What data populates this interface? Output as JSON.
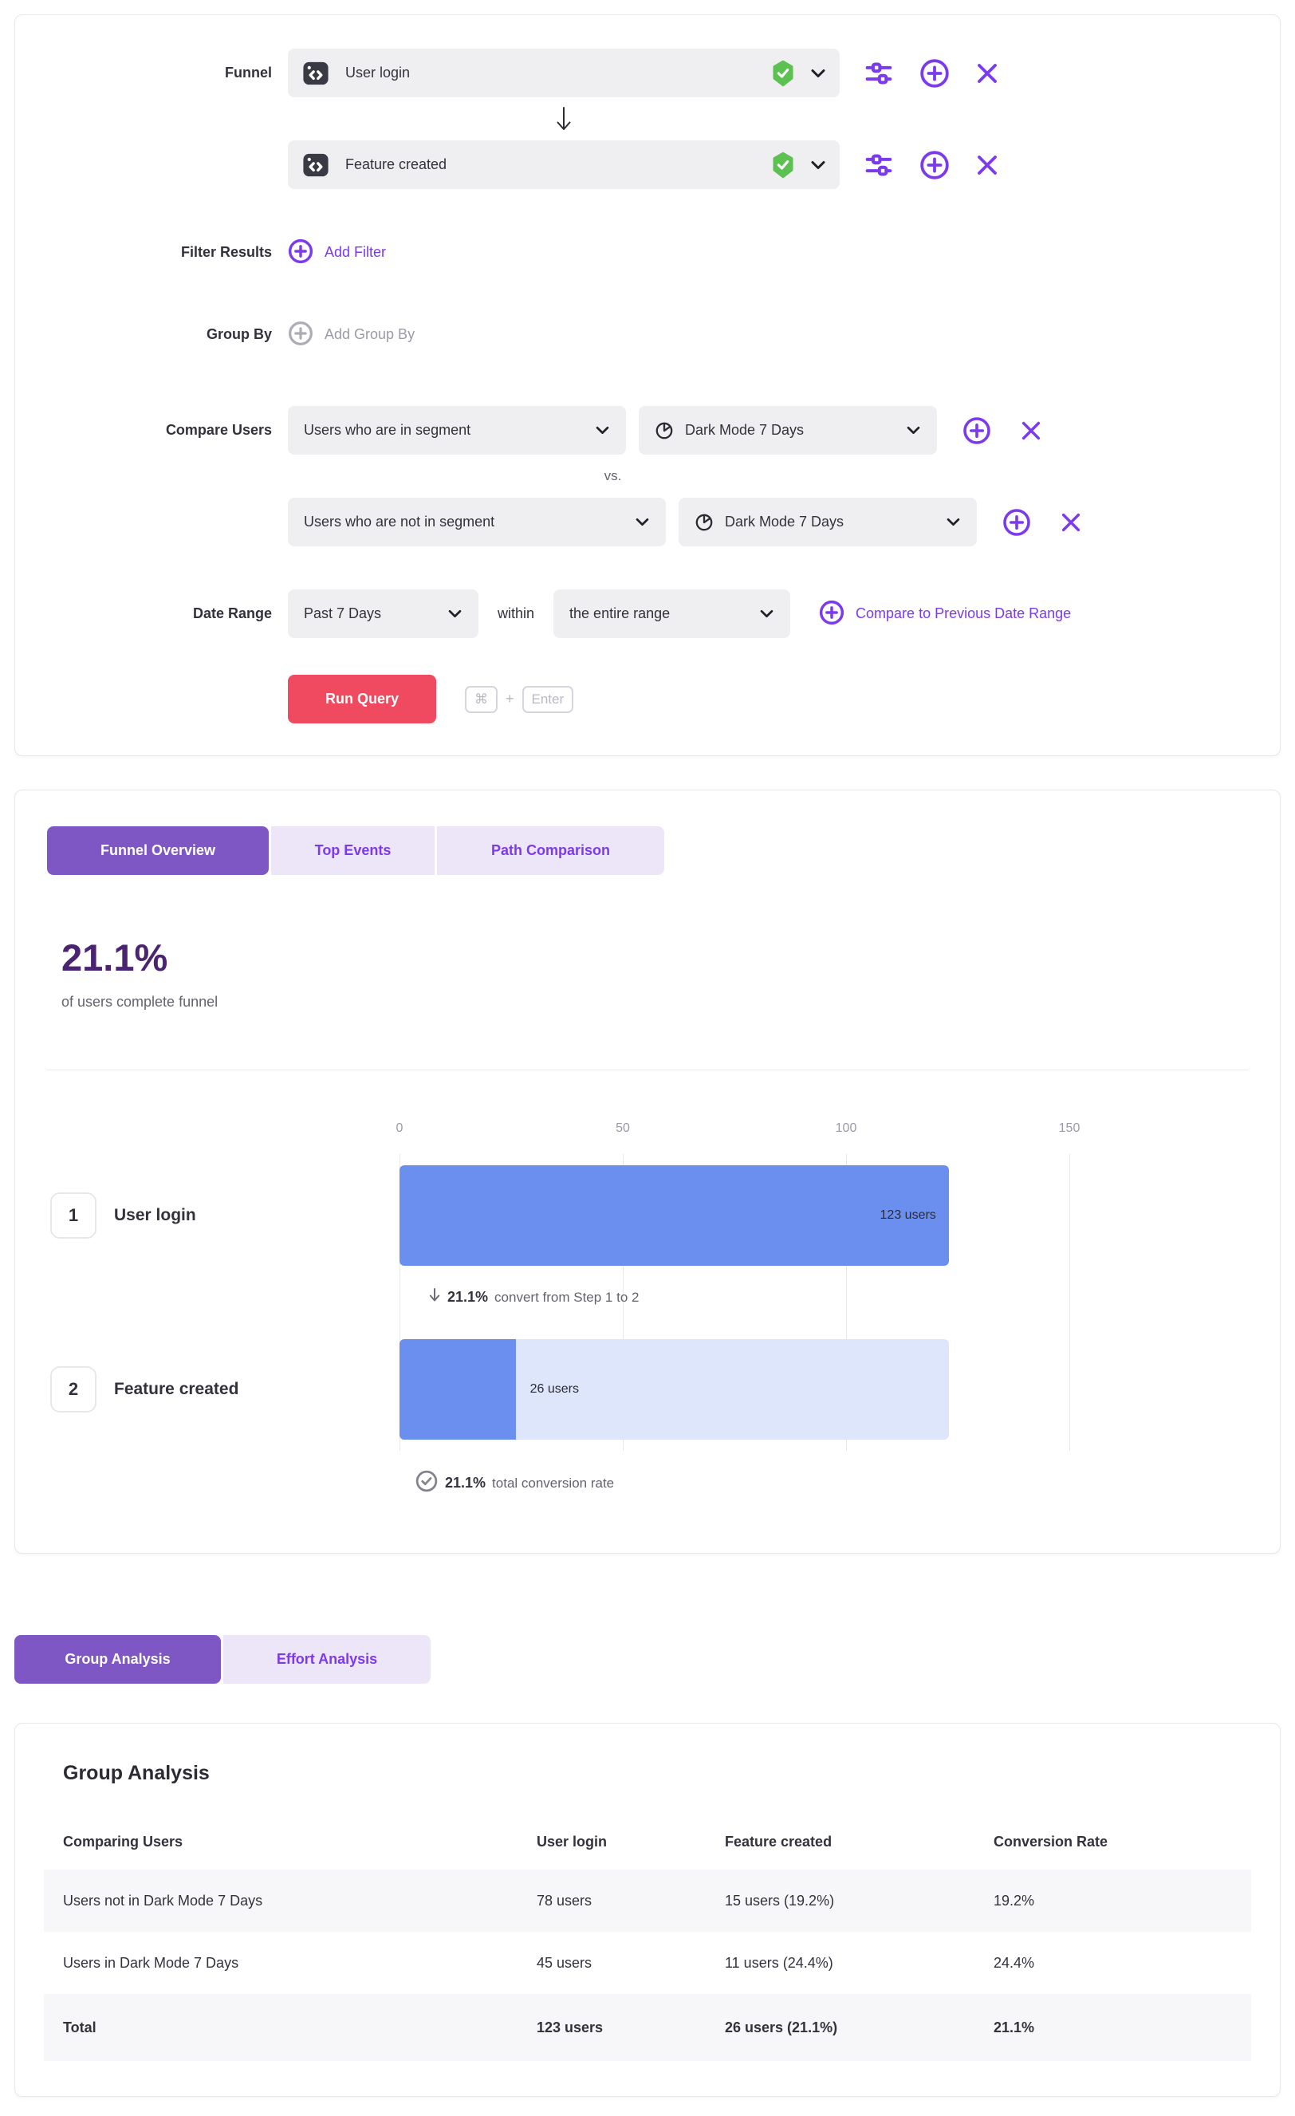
{
  "colors": {
    "accent_purple": "#7C3AED",
    "tab_active_bg": "#7E57C4",
    "tab_inactive_bg": "#EDE5F8",
    "headline_purple": "#4A2470",
    "run_button_red": "#EF4A5F",
    "bar_blue": "#6B8FEF",
    "bar_track_blue": "#DDE6FB",
    "shield_green": "#5CC151"
  },
  "query_builder": {
    "funnel_label": "Funnel",
    "steps": [
      {
        "event": "User login"
      },
      {
        "event": "Feature created"
      }
    ],
    "filter_results": {
      "label": "Filter Results",
      "action": "Add Filter"
    },
    "group_by": {
      "label": "Group By",
      "action": "Add Group By"
    },
    "compare_users": {
      "label": "Compare Users",
      "vs_label": "vs.",
      "rows": [
        {
          "cohort": "Users who are in segment",
          "segment": "Dark Mode 7 Days"
        },
        {
          "cohort": "Users who are not in segment",
          "segment": "Dark Mode 7 Days"
        }
      ]
    },
    "date_range": {
      "label": "Date Range",
      "range_value": "Past 7 Days",
      "within_label": "within",
      "scope_value": "the entire range",
      "compare_link": "Compare to Previous Date Range"
    },
    "run_query": {
      "label": "Run Query",
      "key_modifier": "⌘",
      "key_joiner": "+",
      "key_enter": "Enter"
    }
  },
  "results": {
    "tabs": [
      {
        "label": "Funnel Overview"
      },
      {
        "label": "Top Events"
      },
      {
        "label": "Path Comparison"
      }
    ],
    "headline_value": "21.1%",
    "headline_caption": "of users complete funnel",
    "chart_data": {
      "type": "bar",
      "orientation": "horizontal",
      "title": "Funnel Overview",
      "categories": [
        "User login",
        "Feature created"
      ],
      "step_numbers": [
        "1",
        "2"
      ],
      "values": [
        123,
        26
      ],
      "bar_labels": [
        "123 users",
        "26 users"
      ],
      "x_ticks": [
        0,
        50,
        100,
        150
      ],
      "xlim": [
        0,
        150
      ],
      "grid": true,
      "step_conversion_value": "21.1%",
      "step_conversion_caption": "convert from Step 1 to 2",
      "total_conversion_value": "21.1%",
      "total_conversion_caption": "total conversion rate"
    }
  },
  "analysis": {
    "tabs": [
      {
        "label": "Group Analysis"
      },
      {
        "label": "Effort Analysis"
      }
    ],
    "card_title": "Group Analysis",
    "table": {
      "headers": [
        "Comparing Users",
        "User login",
        "Feature created",
        "Conversion Rate"
      ],
      "rows": [
        {
          "cells": [
            "Users not in Dark Mode 7 Days",
            "78 users",
            "15 users (19.2%)",
            "19.2%"
          ]
        },
        {
          "cells": [
            "Users in Dark Mode 7 Days",
            "45 users",
            "11 users (24.4%)",
            "24.4%"
          ]
        },
        {
          "cells": [
            "Total",
            "123 users",
            "26 users (21.1%)",
            "21.1%"
          ]
        }
      ]
    }
  }
}
